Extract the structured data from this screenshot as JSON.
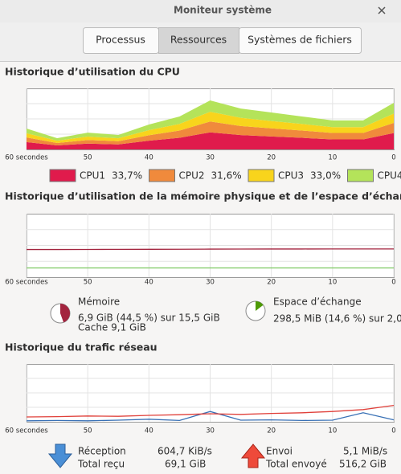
{
  "window": {
    "title": "Moniteur système"
  },
  "tabs": [
    "Processus",
    "Ressources",
    "Systèmes de fichiers"
  ],
  "chart_data": [
    {
      "type": "area",
      "stacked": true,
      "title": "Historique d’utilisation du CPU",
      "x": [
        60,
        55,
        50,
        45,
        40,
        35,
        30,
        25,
        20,
        15,
        10,
        5,
        0
      ],
      "xlim": [
        60,
        0
      ],
      "ylim": [
        0,
        400
      ],
      "xticks": [
        {
          "value": 60,
          "label": "60 secondes"
        },
        50,
        40,
        30,
        20,
        10,
        0
      ],
      "grid": true,
      "series": [
        {
          "name": "CPU1",
          "current": "33,7%",
          "color": "#e01b4c",
          "values": [
            48,
            26,
            38,
            33,
            57,
            76,
            112,
            94,
            85,
            76,
            66,
            66,
            107
          ]
        },
        {
          "name": "CPU2",
          "current": "31,6%",
          "color": "#f08a3c",
          "values": [
            30,
            16,
            24,
            21,
            36,
            48,
            71,
            59,
            53,
            48,
            42,
            42,
            67
          ]
        },
        {
          "name": "CPU3",
          "current": "33,0%",
          "color": "#f8d41c",
          "values": [
            28,
            15,
            22,
            19,
            33,
            43,
            64,
            54,
            48,
            43,
            38,
            38,
            61
          ]
        },
        {
          "name": "CPU4",
          "color": "#b4e35a",
          "values": [
            31,
            17,
            26,
            22,
            37,
            49,
            74,
            61,
            56,
            49,
            44,
            44,
            70
          ]
        }
      ]
    },
    {
      "type": "line",
      "title": "Historique d’utilisation de la mémoire physique et de l’espace d’échange",
      "x": [
        60,
        55,
        50,
        45,
        40,
        35,
        30,
        25,
        20,
        15,
        10,
        5,
        0
      ],
      "xlim": [
        60,
        0
      ],
      "ylim": [
        0,
        100
      ],
      "xticks": [
        {
          "value": 60,
          "label": "60 secondes"
        },
        50,
        40,
        30,
        20,
        10,
        0
      ],
      "grid": true,
      "series": [
        {
          "color": "#a3243e",
          "values": [
            43.6,
            43.6,
            43.7,
            43.8,
            43.9,
            44.0,
            44.2,
            44.3,
            44.4,
            44.4,
            44.5,
            44.5,
            44.5
          ]
        },
        {
          "color": "#7cc85f",
          "values": [
            14.6,
            14.6,
            14.6,
            14.6,
            14.6,
            14.6,
            14.6,
            14.6,
            14.6,
            14.6,
            14.6,
            14.6,
            14.6
          ]
        }
      ]
    },
    {
      "type": "line",
      "title": "Historique du trafic réseau",
      "x": [
        60,
        55,
        50,
        45,
        40,
        35,
        30,
        25,
        20,
        15,
        10,
        5,
        0
      ],
      "xlim": [
        60,
        0
      ],
      "ylim": [
        0,
        18
      ],
      "xticks": [
        {
          "value": 60,
          "label": "60 secondes"
        },
        50,
        40,
        30,
        20,
        10,
        0
      ],
      "grid": true,
      "series": [
        {
          "color": "#3870b5",
          "values": [
            0.3,
            0.4,
            0.3,
            0.5,
            0.8,
            0.4,
            3.2,
            0.5,
            0.6,
            0.4,
            0.5,
            2.8,
            0.6
          ]
        },
        {
          "color": "#e0403a",
          "values": [
            1.5,
            1.6,
            1.8,
            1.7,
            2.0,
            2.2,
            2.5,
            2.3,
            2.6,
            2.8,
            3.2,
            3.8,
            5.1
          ]
        }
      ]
    }
  ],
  "memory": {
    "label": "Mémoire",
    "usage": "6,9 GiB (44,5 %) sur 15,5 GiB",
    "cache": "Cache 9,1 GiB",
    "percent": 44.5,
    "color": "#a3243e"
  },
  "swap": {
    "label": "Espace d’échange",
    "usage": "298,5 MiB (14,6 %) sur 2,0",
    "percent": 14.6,
    "color": "#4e9a06"
  },
  "network": {
    "receive": {
      "label": "Réception",
      "rate": "604,7 KiB/s",
      "total_label": "Total reçu",
      "total": "69,1 GiB"
    },
    "send": {
      "label": "Envoi",
      "rate": "5,1 MiB/s",
      "total_label": "Total envoyé",
      "total": "516,2 GiB"
    }
  }
}
